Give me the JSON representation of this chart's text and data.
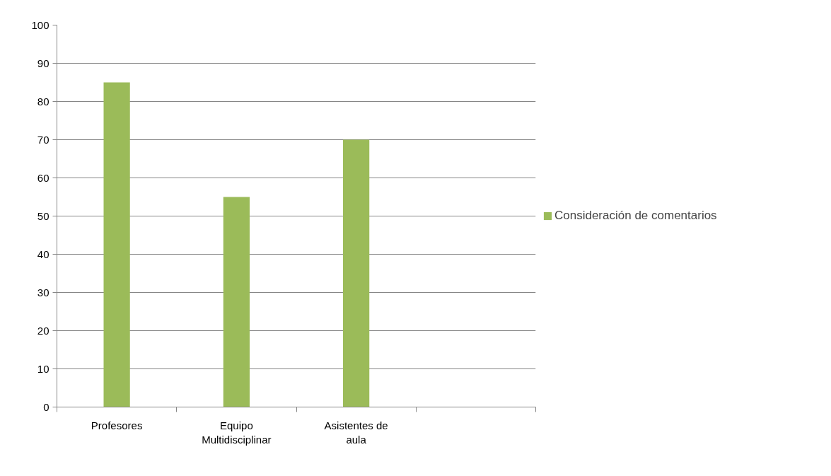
{
  "chart_data": {
    "type": "bar",
    "categories": [
      "Profesores",
      "Equipo Multidisciplinar",
      "Asistentes de aula",
      null
    ],
    "series": [
      {
        "name": "Consideración de comentarios",
        "color": "#9bbb59",
        "values": [
          85,
          55,
          70,
          null
        ]
      }
    ],
    "ylim": [
      0,
      100
    ],
    "yticks": [
      0,
      10,
      20,
      30,
      40,
      50,
      60,
      70,
      80,
      90,
      100
    ],
    "grid": "y",
    "legend": "right"
  }
}
